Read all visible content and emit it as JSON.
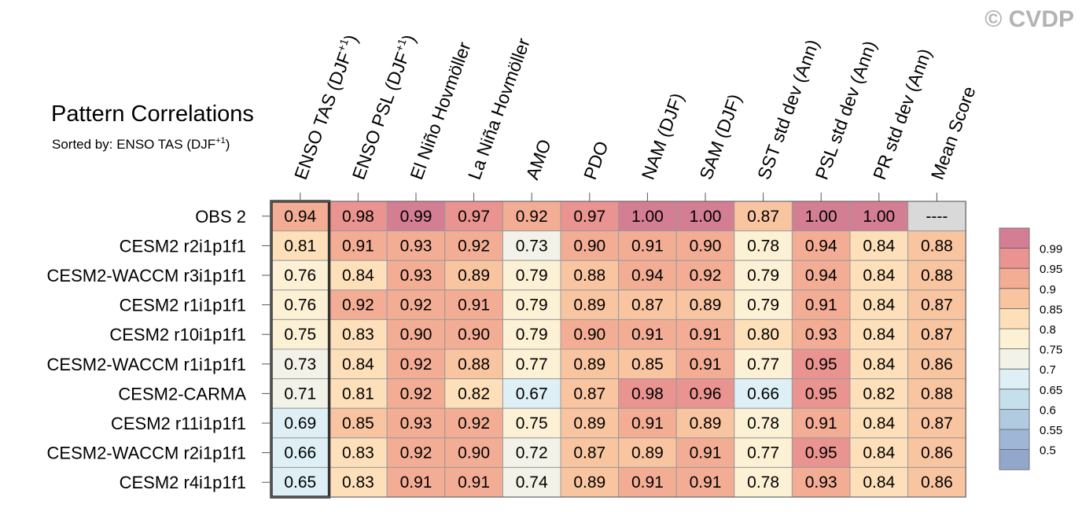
{
  "watermark": "© CVDP",
  "chart_data": {
    "type": "heatmap",
    "title": "Pattern Correlations",
    "subtitle_prefix": "Sorted by: ENSO TAS (DJF",
    "subtitle_sup": "+1",
    "subtitle_suffix": ")",
    "columns": [
      {
        "label": "ENSO TAS (DJF",
        "sup": "+1",
        "suffix": ")"
      },
      {
        "label": "ENSO PSL (DJF",
        "sup": "+1",
        "suffix": ")"
      },
      {
        "label": "El Niño Hovmöller",
        "sup": "",
        "suffix": ""
      },
      {
        "label": "La Niña Hovmöller",
        "sup": "",
        "suffix": ""
      },
      {
        "label": "AMO",
        "sup": "",
        "suffix": ""
      },
      {
        "label": "PDO",
        "sup": "",
        "suffix": ""
      },
      {
        "label": "NAM (DJF)",
        "sup": "",
        "suffix": ""
      },
      {
        "label": "SAM (DJF)",
        "sup": "",
        "suffix": ""
      },
      {
        "label": "SST std dev (Ann)",
        "sup": "",
        "suffix": ""
      },
      {
        "label": "PSL std dev (Ann)",
        "sup": "",
        "suffix": ""
      },
      {
        "label": "PR std dev (Ann)",
        "sup": "",
        "suffix": ""
      },
      {
        "label": "Mean Score",
        "sup": "",
        "suffix": ""
      }
    ],
    "rows": [
      "OBS 2",
      "CESM2 r2i1p1f1",
      "CESM2-WACCM r3i1p1f1",
      "CESM2 r1i1p1f1",
      "CESM2 r10i1p1f1",
      "CESM2-WACCM r1i1p1f1",
      "CESM2-CARMA",
      "CESM2 r11i1p1f1",
      "CESM2-WACCM r2i1p1f1",
      "CESM2 r4i1p1f1"
    ],
    "values": [
      [
        "0.94",
        "0.98",
        "0.99",
        "0.97",
        "0.92",
        "0.97",
        "1.00",
        "1.00",
        "0.87",
        "1.00",
        "1.00",
        "----"
      ],
      [
        "0.81",
        "0.91",
        "0.93",
        "0.92",
        "0.73",
        "0.90",
        "0.91",
        "0.90",
        "0.78",
        "0.94",
        "0.84",
        "0.88"
      ],
      [
        "0.76",
        "0.84",
        "0.93",
        "0.89",
        "0.79",
        "0.88",
        "0.94",
        "0.92",
        "0.79",
        "0.94",
        "0.84",
        "0.88"
      ],
      [
        "0.76",
        "0.92",
        "0.92",
        "0.91",
        "0.79",
        "0.89",
        "0.87",
        "0.89",
        "0.79",
        "0.91",
        "0.84",
        "0.87"
      ],
      [
        "0.75",
        "0.83",
        "0.90",
        "0.90",
        "0.79",
        "0.90",
        "0.91",
        "0.91",
        "0.80",
        "0.93",
        "0.84",
        "0.87"
      ],
      [
        "0.73",
        "0.84",
        "0.92",
        "0.88",
        "0.77",
        "0.89",
        "0.85",
        "0.91",
        "0.77",
        "0.95",
        "0.84",
        "0.86"
      ],
      [
        "0.71",
        "0.81",
        "0.92",
        "0.82",
        "0.67",
        "0.87",
        "0.98",
        "0.96",
        "0.66",
        "0.95",
        "0.82",
        "0.88"
      ],
      [
        "0.69",
        "0.85",
        "0.93",
        "0.92",
        "0.75",
        "0.89",
        "0.91",
        "0.89",
        "0.78",
        "0.91",
        "0.84",
        "0.87"
      ],
      [
        "0.66",
        "0.83",
        "0.92",
        "0.90",
        "0.72",
        "0.87",
        "0.89",
        "0.91",
        "0.77",
        "0.95",
        "0.84",
        "0.86"
      ],
      [
        "0.65",
        "0.83",
        "0.91",
        "0.91",
        "0.74",
        "0.89",
        "0.91",
        "0.91",
        "0.78",
        "0.93",
        "0.84",
        "0.86"
      ]
    ],
    "highlighted_column": 0,
    "missing_color": "#d9d9d9",
    "colorbar": {
      "labels": [
        "0.99",
        "0.95",
        "0.9",
        "0.85",
        "0.8",
        "0.75",
        "0.7",
        "0.65",
        "0.6",
        "0.55",
        "0.5"
      ],
      "bins": [
        {
          "min": 0.99,
          "color": "#d47e94"
        },
        {
          "min": 0.95,
          "color": "#e99490"
        },
        {
          "min": 0.9,
          "color": "#f4ad95"
        },
        {
          "min": 0.85,
          "color": "#f9c5a1"
        },
        {
          "min": 0.8,
          "color": "#fde0b9"
        },
        {
          "min": 0.75,
          "color": "#fdf1d5"
        },
        {
          "min": 0.7,
          "color": "#f2f2e8"
        },
        {
          "min": 0.65,
          "color": "#def0f5"
        },
        {
          "min": 0.6,
          "color": "#c6dfec"
        },
        {
          "min": 0.55,
          "color": "#b0cbe0"
        },
        {
          "min": 0.5,
          "color": "#a0b6d6"
        },
        {
          "min": -1.0,
          "color": "#93a6cc"
        }
      ]
    }
  }
}
